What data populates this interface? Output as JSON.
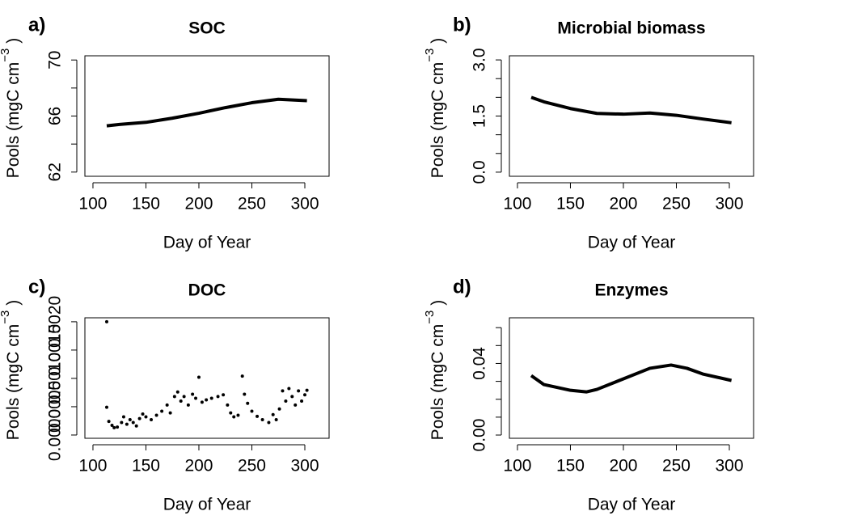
{
  "chart_data": [
    {
      "type": "line",
      "panel_label": "a)",
      "title": "SOC",
      "xlabel": "Day of Year",
      "ylabel": {
        "text": "Pools (mgC cm",
        "sup": "−3",
        "end": ")"
      },
      "x": [
        113,
        125,
        150,
        175,
        200,
        225,
        250,
        275,
        302
      ],
      "values": [
        65.3,
        65.4,
        65.55,
        65.85,
        66.2,
        66.6,
        66.95,
        67.2,
        67.1
      ],
      "color": "#000000",
      "xlim": [
        92.4,
        322.9
      ],
      "xticks": [
        100,
        150,
        200,
        250,
        300
      ],
      "ylim": [
        61.7,
        70.3
      ],
      "yticks": [
        62,
        66,
        70
      ],
      "yminorticks": [
        64,
        68
      ]
    },
    {
      "type": "line",
      "panel_label": "b)",
      "title": "Microbial biomass",
      "xlabel": "Day of Year",
      "ylabel": {
        "text": "Pools (mgC cm",
        "sup": "−3",
        "end": ")"
      },
      "x": [
        113,
        125,
        150,
        175,
        200,
        225,
        250,
        275,
        302
      ],
      "values": [
        2.0,
        1.88,
        1.7,
        1.57,
        1.55,
        1.58,
        1.52,
        1.42,
        1.32
      ],
      "color": "#000000",
      "xlim": [
        92.4,
        322.9
      ],
      "xticks": [
        100,
        150,
        200,
        250,
        300
      ],
      "ylim": [
        -0.11,
        3.11
      ],
      "yticks": [
        {
          "value": 0,
          "label": "0.0"
        },
        1.5,
        {
          "value": 3,
          "label": "3.0"
        }
      ],
      "yminorticks": [
        0.5,
        1,
        2,
        2.5
      ]
    },
    {
      "type": "scatter",
      "panel_label": "c)",
      "title": "DOC",
      "xlabel": "Day of Year",
      "ylabel": {
        "text": "Pools (mgC cm",
        "sup": "−3",
        "end": ")"
      },
      "x": [
        113,
        113,
        115,
        118,
        120,
        123,
        127,
        129,
        132,
        135,
        138,
        141,
        144,
        147,
        150,
        155,
        160,
        165,
        170,
        173,
        177,
        180,
        183,
        186,
        190,
        194,
        197,
        200,
        203,
        207,
        212,
        218,
        223,
        227,
        230,
        233,
        237,
        241,
        243,
        246,
        250,
        255,
        260,
        266,
        270,
        273,
        276,
        279,
        282,
        285,
        288,
        291,
        294,
        297,
        300,
        302
      ],
      "values": [
        0.002,
        0.00049,
        0.00024,
        0.00017,
        0.00013,
        0.00014,
        0.00022,
        0.00032,
        0.00019,
        0.00027,
        0.00022,
        0.00016,
        0.00029,
        0.00037,
        0.00032,
        0.00027,
        0.00035,
        0.00042,
        0.00053,
        0.00039,
        0.00068,
        0.00076,
        0.0006,
        0.00068,
        0.00053,
        0.00072,
        0.00065,
        0.00102,
        0.00058,
        0.00062,
        0.00065,
        0.00068,
        0.00071,
        0.00053,
        0.00039,
        0.00032,
        0.00035,
        0.00104,
        0.00072,
        0.00056,
        0.00042,
        0.00033,
        0.00027,
        0.00022,
        0.00036,
        0.00027,
        0.00046,
        0.00078,
        0.0006,
        0.00082,
        0.00068,
        0.00053,
        0.00078,
        0.0006,
        0.00071,
        0.00079
      ],
      "color": "#000000",
      "xlim": [
        92.4,
        322.9
      ],
      "xticks": [
        100,
        150,
        200,
        250,
        300
      ],
      "ylim": [
        -5.76e-05,
        0.00207
      ],
      "yticks": [
        {
          "value": 0,
          "label": "0.0000"
        },
        {
          "value": 0.0005,
          "label": "0.0005"
        },
        {
          "value": 0.001,
          "label": "0.0010"
        },
        0.0015,
        {
          "value": 0.002,
          "label": "0.0020"
        }
      ],
      "yminorticks": []
    },
    {
      "type": "line",
      "panel_label": "d)",
      "title": "Enzymes",
      "xlabel": "Day of Year",
      "ylabel": {
        "text": "Pools (mgC cm",
        "sup": "−3",
        "end": ")"
      },
      "x": [
        113,
        125,
        150,
        165,
        175,
        200,
        225,
        245,
        260,
        275,
        302
      ],
      "values": [
        0.0332,
        0.0282,
        0.025,
        0.0241,
        0.0255,
        0.0314,
        0.0373,
        0.0391,
        0.0373,
        0.0341,
        0.0305
      ],
      "color": "#000000",
      "xlim": [
        92.4,
        322.9
      ],
      "xticks": [
        100,
        150,
        200,
        250,
        300
      ],
      "ylim": [
        -0.0018,
        0.0655
      ],
      "yticks": [
        {
          "value": 0,
          "label": "0.00"
        },
        0.04
      ],
      "yminorticks": [
        0.01,
        0.02,
        0.03,
        0.05,
        0.06
      ]
    }
  ]
}
